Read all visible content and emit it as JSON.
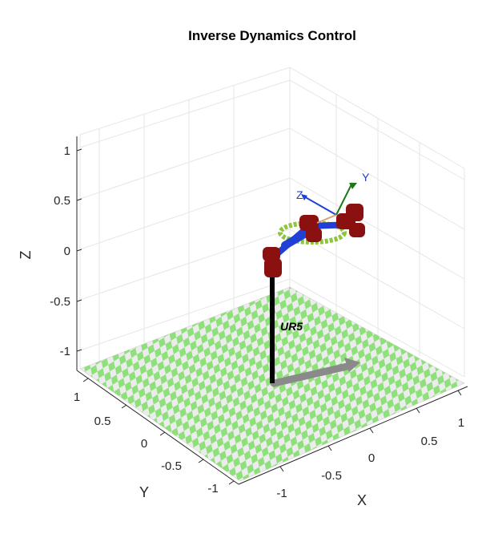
{
  "chart_data": {
    "type": "3d-robot-plot",
    "title": "Inverse Dynamics Control",
    "xlabel": "X",
    "ylabel": "Y",
    "zlabel": "Z",
    "xlim": [
      -1.2,
      1.2
    ],
    "ylim": [
      -1.2,
      1.2
    ],
    "zlim": [
      -1.2,
      1.2
    ],
    "x_ticks": [
      "-1",
      "-0.5",
      "0",
      "0.5",
      "1"
    ],
    "y_ticks": [
      "-1",
      "-0.5",
      "0",
      "0.5",
      "1"
    ],
    "z_ticks": [
      "-1",
      "-0.5",
      "0",
      "0.5",
      "1"
    ],
    "grid": true,
    "robot_label": "UR5",
    "tool_frame_labels": [
      "Z",
      "Y"
    ],
    "colors": {
      "floor_a": "#8ee07a",
      "floor_b": "#ececec",
      "link": "#1f3fd6",
      "joint": "#8b1010",
      "base_pole": "#000000",
      "shadow": "#8a8a8a",
      "ring": "#8fc43e",
      "z_frame": "#1f3fd6",
      "y_frame": "#1a7a1a"
    }
  }
}
